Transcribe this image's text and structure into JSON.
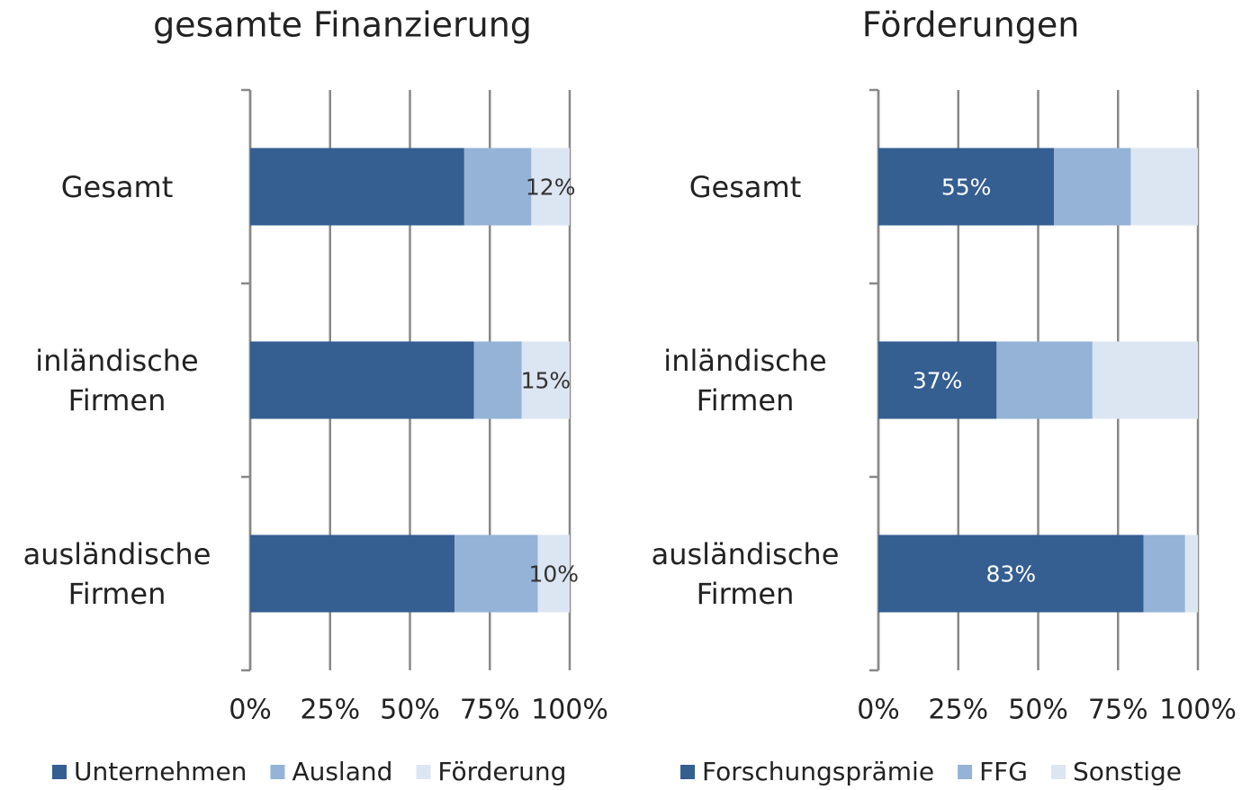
{
  "chart_data": [
    {
      "type": "stacked_barh",
      "title": "gesamte Finanzierung",
      "categories": [
        "Gesamt",
        "inländische Firmen",
        "ausländische Firmen"
      ],
      "series": [
        {
          "name": "Unternehmen",
          "color": "#355e91",
          "values": [
            67,
            70,
            64
          ]
        },
        {
          "name": "Ausland",
          "color": "#95b3d7",
          "values": [
            21,
            15,
            26
          ]
        },
        {
          "name": "Förderung",
          "color": "#dce6f2",
          "values": [
            12,
            15,
            10
          ],
          "value_labels": [
            "12%",
            "15%",
            "10%"
          ]
        }
      ],
      "xlim": [
        0,
        100
      ],
      "xticks": [
        {
          "value": 0,
          "label": "0%"
        },
        {
          "value": 25,
          "label": "25%"
        },
        {
          "value": 50,
          "label": "50%"
        },
        {
          "value": 75,
          "label": "75%"
        },
        {
          "value": 100,
          "label": "100%"
        }
      ],
      "grid": true,
      "legend": "bottom"
    },
    {
      "type": "stacked_barh",
      "title": "Förderungen",
      "categories": [
        "Gesamt",
        "inländische Firmen",
        "ausländische Firmen"
      ],
      "series": [
        {
          "name": "Forschungsprämie",
          "color": "#355e91",
          "values": [
            55,
            37,
            83
          ],
          "value_labels": [
            "55%",
            "37%",
            "83%"
          ]
        },
        {
          "name": "FFG",
          "color": "#95b3d7",
          "values": [
            24,
            30,
            13
          ]
        },
        {
          "name": "Sonstige",
          "color": "#dce6f2",
          "values": [
            21,
            33,
            4
          ]
        }
      ],
      "xlim": [
        0,
        100
      ],
      "xticks": [
        {
          "value": 0,
          "label": "0%"
        },
        {
          "value": 25,
          "label": "25%"
        },
        {
          "value": 50,
          "label": "50%"
        },
        {
          "value": 75,
          "label": "75%"
        },
        {
          "value": 100,
          "label": "100%"
        }
      ],
      "grid": true,
      "legend": "bottom"
    }
  ]
}
